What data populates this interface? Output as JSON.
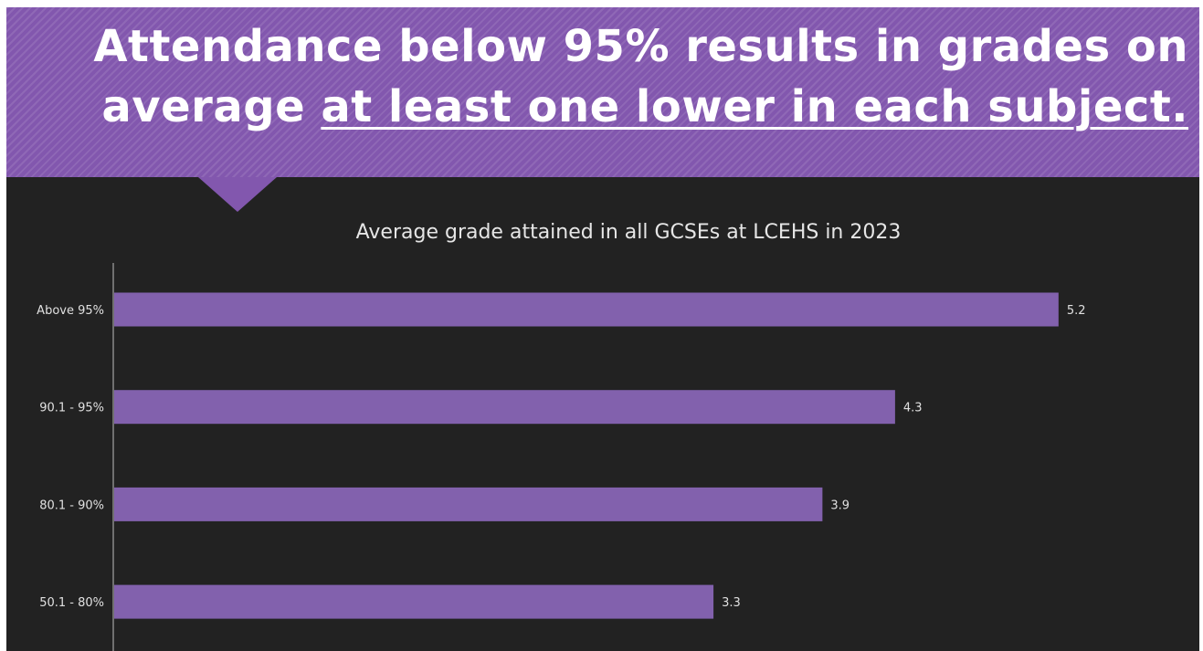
{
  "headline": {
    "line1": "Attendance below 95% results in grades on",
    "line2_plain": "average ",
    "line2_underlined": "at least one lower in each subject."
  },
  "colors": {
    "banner": "#8257ae",
    "background": "#222222",
    "bar": "#8261ad"
  },
  "chart_data": {
    "type": "bar",
    "orientation": "horizontal",
    "title": "Average grade attained in all GCSEs at LCEHS in 2023",
    "categories": [
      "Above 95%",
      "90.1 - 95%",
      "80.1 - 90%",
      "50.1 - 80%"
    ],
    "values": [
      5.2,
      4.3,
      3.9,
      3.3
    ],
    "data_labels": [
      "5.2",
      "4.3",
      "3.9",
      "3.3"
    ],
    "xlim": [
      0,
      5.9
    ],
    "grid": false,
    "legend": "none"
  }
}
